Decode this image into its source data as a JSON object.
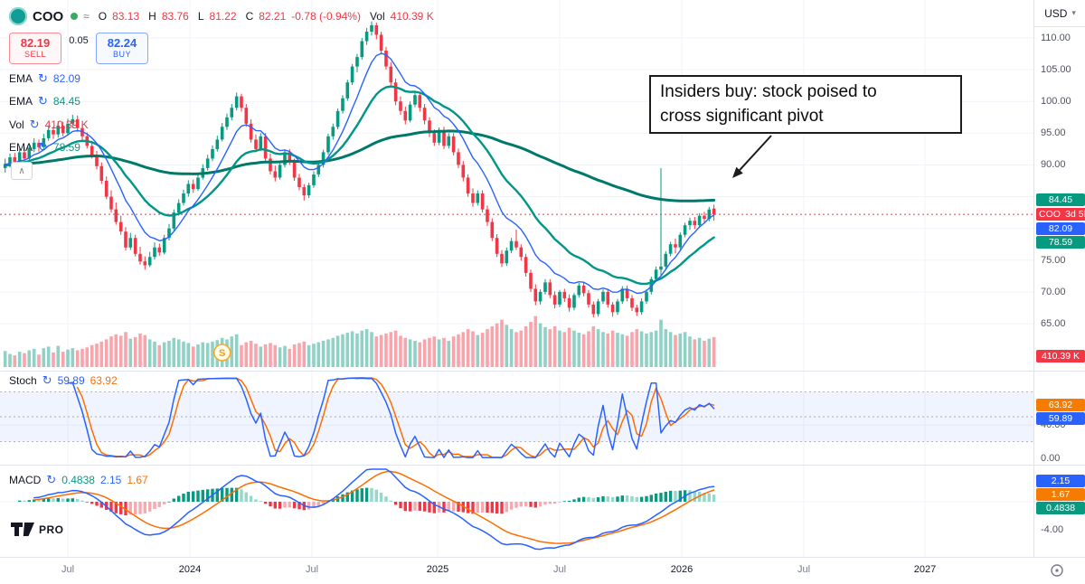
{
  "icons": {
    "approx": "≈",
    "refresh": "↻",
    "collapse": "∧",
    "currency_caret": "▾"
  },
  "header": {
    "symbol": "COO",
    "ohlc": {
      "o_label": "O",
      "o": "83.13",
      "h_label": "H",
      "h": "83.76",
      "l_label": "L",
      "l": "81.22",
      "c_label": "C",
      "c": "82.21",
      "change": "-0.78 (-0.94%)",
      "vol_label": "Vol",
      "vol": "410.39 K"
    },
    "currency_button": {
      "label": "USD"
    }
  },
  "trade_panel": {
    "sell_price": "82.19",
    "sell_label": "SELL",
    "sell_color": "#f23645",
    "spread": "0.05",
    "buy_price": "82.24",
    "buy_label": "BUY",
    "buy_color": "#2962ff"
  },
  "legend": {
    "rows": [
      {
        "label": "EMA",
        "value": "82.09",
        "color": "#2962ff"
      },
      {
        "label": "EMA",
        "value": "84.45",
        "color": "#089981"
      },
      {
        "label": "Vol",
        "value": "410.39 K",
        "color": "#f23645"
      },
      {
        "label": "EMA",
        "value": "78.59",
        "color": "#089981"
      }
    ]
  },
  "panes": {
    "stoch": {
      "label": "Stoch",
      "k": "59.89",
      "k_color": "#2962ff",
      "d": "63.92",
      "d_color": "#ff6d00"
    },
    "macd": {
      "label": "MACD",
      "hist": "0.4838",
      "hist_color": "#089981",
      "macd": "2.15",
      "macd_color": "#2962ff",
      "signal": "1.67",
      "signal_color": "#ff6d00"
    }
  },
  "price_axis": {
    "labels": [
      "110.00",
      "105.00",
      "100.00",
      "95.00",
      "90.00",
      "75.00",
      "70.00",
      "65.00"
    ],
    "badges": [
      {
        "text": "84.45",
        "color": "#089981"
      },
      {
        "text": "COO",
        "text2": "3d 5h",
        "color": "#f23645"
      },
      {
        "text": "82.09",
        "color": "#2962ff"
      },
      {
        "text": "78.59",
        "color": "#089981"
      },
      {
        "text": "410.39 K",
        "color": "#f23645"
      }
    ]
  },
  "stoch_axis": {
    "labels": [
      "40.00",
      "0.00"
    ],
    "badges": [
      {
        "text": "63.92",
        "color": "#f57c00"
      },
      {
        "text": "59.89",
        "color": "#2962ff"
      }
    ]
  },
  "macd_axis": {
    "labels": [
      "-4.00"
    ],
    "badges": [
      {
        "text": "2.15",
        "color": "#2962ff"
      },
      {
        "text": "1.67",
        "color": "#f57c00"
      },
      {
        "text": "0.4838",
        "color": "#089981"
      }
    ]
  },
  "time_axis": {
    "labels": [
      "Jul",
      "2024",
      "Jul",
      "2025",
      "Jul",
      "2026",
      "Jul",
      "2027"
    ]
  },
  "annotation": {
    "line1": "Insiders buy: stock poised to",
    "line2": "cross significant pivot"
  },
  "marker": {
    "label": "S"
  },
  "logo": {
    "text": "PRO"
  },
  "chart_data": {
    "type": "candlestick",
    "symbol": "COO",
    "currency": "USD",
    "bar_interval": "1W",
    "last_bar_countdown": "3d 5h",
    "ohlc_last": {
      "open": 83.13,
      "high": 83.76,
      "low": 81.22,
      "close": 82.21,
      "change": -0.78,
      "change_pct": -0.94,
      "volume_k": 410.39
    },
    "price_line": 82.21,
    "ylim": [
      58,
      116
    ],
    "x_axis_labels": [
      "Jul",
      "2024",
      "Jul",
      "2025",
      "Jul",
      "2026",
      "Jul",
      "2027"
    ],
    "style": {
      "up": "#089981",
      "down": "#f23645",
      "vol_up": "rgba(8,153,129,0.45)",
      "vol_down": "rgba(242,54,69,0.45)",
      "grid": "#f0f3fa",
      "separator": "#e0e3eb"
    },
    "emas": [
      {
        "period": 9,
        "color": "#2962ff",
        "width": 1.4,
        "last": 82.09
      },
      {
        "period": 21,
        "color": "#009688",
        "width": 2.4,
        "last": 78.59
      },
      {
        "period": 110,
        "color": "#00796b",
        "width": 3,
        "last": 84.45
      }
    ],
    "stochastic": {
      "k_period": 14,
      "d_period": 3,
      "k_last": 59.89,
      "d_last": 63.92,
      "band": [
        20,
        80
      ]
    },
    "macd": {
      "fast": 12,
      "slow": 26,
      "signal": 9,
      "macd_last": 2.15,
      "signal_last": 1.67,
      "hist_last": 0.4838
    },
    "candles": [
      [
        89.5,
        91.0,
        88.8,
        90.0,
        220
      ],
      [
        90.0,
        91.8,
        89.6,
        91.2,
        180
      ],
      [
        91.2,
        91.9,
        89.9,
        90.5,
        160
      ],
      [
        90.5,
        92.6,
        90.1,
        92.0,
        210
      ],
      [
        92.0,
        92.8,
        90.4,
        91.0,
        190
      ],
      [
        91.0,
        93.1,
        90.7,
        92.5,
        230
      ],
      [
        92.5,
        94.2,
        92.0,
        93.5,
        250
      ],
      [
        93.5,
        94.0,
        92.1,
        92.8,
        170
      ],
      [
        92.8,
        94.9,
        92.4,
        94.2,
        260
      ],
      [
        94.2,
        96.2,
        93.8,
        95.5,
        280
      ],
      [
        95.5,
        96.0,
        94.1,
        94.8,
        200
      ],
      [
        94.8,
        96.9,
        94.3,
        96.2,
        290
      ],
      [
        96.2,
        96.8,
        94.5,
        95.0,
        210
      ],
      [
        95.0,
        97.3,
        94.6,
        96.5,
        240
      ],
      [
        96.5,
        97.9,
        95.8,
        97.2,
        260
      ],
      [
        97.2,
        97.8,
        95.2,
        95.8,
        230
      ],
      [
        95.8,
        96.4,
        93.9,
        94.5,
        250
      ],
      [
        94.5,
        95.1,
        92.6,
        93.0,
        270
      ],
      [
        93.0,
        93.8,
        91.0,
        91.5,
        300
      ],
      [
        91.5,
        92.2,
        89.3,
        89.8,
        320
      ],
      [
        89.8,
        90.4,
        87.0,
        87.5,
        350
      ],
      [
        87.5,
        88.2,
        84.6,
        85.0,
        380
      ],
      [
        85.0,
        86.0,
        82.5,
        83.0,
        420
      ],
      [
        83.0,
        84.1,
        80.6,
        81.0,
        450
      ],
      [
        81.0,
        82.0,
        79.0,
        79.5,
        430
      ],
      [
        79.5,
        80.2,
        76.5,
        77.0,
        480
      ],
      [
        77.0,
        79.3,
        76.6,
        78.5,
        390
      ],
      [
        78.5,
        79.0,
        75.6,
        76.0,
        410
      ],
      [
        76.0,
        77.1,
        74.3,
        74.8,
        460
      ],
      [
        74.8,
        75.6,
        73.5,
        74.2,
        440
      ],
      [
        74.2,
        76.3,
        73.9,
        75.5,
        380
      ],
      [
        75.5,
        77.8,
        75.1,
        77.0,
        350
      ],
      [
        77.0,
        77.6,
        75.7,
        76.2,
        300
      ],
      [
        76.2,
        79.0,
        75.9,
        78.5,
        340
      ],
      [
        78.5,
        80.7,
        78.1,
        80.0,
        360
      ],
      [
        80.0,
        83.0,
        79.6,
        82.5,
        400
      ],
      [
        82.5,
        84.6,
        82.0,
        84.0,
        380
      ],
      [
        84.0,
        86.1,
        83.6,
        85.5,
        350
      ],
      [
        85.5,
        87.6,
        85.0,
        87.0,
        330
      ],
      [
        87.0,
        87.7,
        85.6,
        86.2,
        280
      ],
      [
        86.2,
        88.6,
        85.9,
        88.0,
        310
      ],
      [
        88.0,
        90.1,
        87.7,
        89.5,
        340
      ],
      [
        89.5,
        91.6,
        89.1,
        91.0,
        330
      ],
      [
        91.0,
        93.1,
        90.6,
        92.5,
        350
      ],
      [
        92.5,
        94.6,
        92.1,
        94.0,
        370
      ],
      [
        94.0,
        96.6,
        93.7,
        96.0,
        400
      ],
      [
        96.0,
        98.1,
        95.5,
        97.5,
        380
      ],
      [
        97.5,
        99.6,
        97.0,
        99.0,
        420
      ],
      [
        99.0,
        101.4,
        98.6,
        100.8,
        450
      ],
      [
        100.8,
        101.2,
        98.4,
        99.0,
        300
      ],
      [
        99.0,
        99.6,
        96.0,
        96.5,
        340
      ],
      [
        96.5,
        97.2,
        93.5,
        94.0,
        360
      ],
      [
        94.0,
        94.8,
        92.0,
        92.5,
        320
      ],
      [
        92.5,
        95.0,
        92.2,
        94.5,
        280
      ],
      [
        94.5,
        95.0,
        90.6,
        91.0,
        310
      ],
      [
        91.0,
        91.8,
        88.5,
        89.0,
        330
      ],
      [
        89.0,
        89.9,
        87.4,
        88.0,
        300
      ],
      [
        88.0,
        90.4,
        87.7,
        90.0,
        270
      ],
      [
        90.0,
        92.4,
        89.6,
        92.0,
        290
      ],
      [
        92.0,
        92.5,
        90.0,
        90.5,
        250
      ],
      [
        90.5,
        91.0,
        87.5,
        88.0,
        310
      ],
      [
        88.0,
        88.6,
        86.0,
        86.5,
        330
      ],
      [
        86.5,
        87.0,
        84.4,
        85.2,
        350
      ],
      [
        85.2,
        87.2,
        84.8,
        86.8,
        300
      ],
      [
        86.8,
        89.0,
        86.4,
        88.5,
        320
      ],
      [
        88.5,
        90.4,
        88.1,
        90.0,
        340
      ],
      [
        90.0,
        92.4,
        89.6,
        92.0,
        360
      ],
      [
        92.0,
        94.9,
        91.6,
        94.5,
        380
      ],
      [
        94.5,
        96.5,
        94.0,
        96.0,
        400
      ],
      [
        96.0,
        98.9,
        95.6,
        98.5,
        430
      ],
      [
        98.5,
        101.0,
        98.1,
        100.5,
        450
      ],
      [
        100.5,
        103.4,
        100.1,
        103.0,
        470
      ],
      [
        103.0,
        105.9,
        102.6,
        105.5,
        490
      ],
      [
        105.5,
        107.5,
        104.6,
        107.0,
        460
      ],
      [
        107.0,
        110.0,
        106.6,
        109.5,
        500
      ],
      [
        109.5,
        111.6,
        108.9,
        111.0,
        520
      ],
      [
        111.0,
        112.6,
        110.4,
        112.0,
        480
      ],
      [
        112.0,
        112.4,
        109.8,
        110.5,
        420
      ],
      [
        110.5,
        111.0,
        107.4,
        108.0,
        440
      ],
      [
        108.0,
        108.6,
        105.0,
        105.5,
        460
      ],
      [
        105.5,
        106.2,
        102.5,
        103.0,
        480
      ],
      [
        103.0,
        103.6,
        99.4,
        100.0,
        500
      ],
      [
        100.0,
        100.8,
        97.9,
        98.5,
        430
      ],
      [
        98.5,
        99.2,
        96.4,
        97.0,
        400
      ],
      [
        97.0,
        100.0,
        96.7,
        99.5,
        380
      ],
      [
        99.5,
        101.6,
        99.1,
        101.0,
        360
      ],
      [
        101.0,
        101.5,
        98.4,
        99.0,
        340
      ],
      [
        99.0,
        99.6,
        96.4,
        97.0,
        380
      ],
      [
        97.0,
        97.5,
        94.4,
        95.0,
        400
      ],
      [
        95.0,
        95.6,
        93.0,
        93.5,
        420
      ],
      [
        93.5,
        95.9,
        93.1,
        95.5,
        380
      ],
      [
        95.5,
        96.0,
        92.5,
        93.0,
        400
      ],
      [
        93.0,
        95.0,
        92.6,
        94.5,
        360
      ],
      [
        94.5,
        95.0,
        91.5,
        92.0,
        420
      ],
      [
        92.0,
        92.6,
        89.5,
        90.0,
        450
      ],
      [
        90.0,
        90.6,
        87.4,
        88.0,
        480
      ],
      [
        88.0,
        88.5,
        85.0,
        85.5,
        520
      ],
      [
        85.5,
        86.3,
        83.4,
        84.0,
        490
      ],
      [
        84.0,
        86.0,
        83.6,
        85.5,
        440
      ],
      [
        85.5,
        86.0,
        82.5,
        83.0,
        470
      ],
      [
        83.0,
        83.6,
        80.4,
        81.0,
        520
      ],
      [
        81.0,
        81.6,
        78.0,
        78.5,
        560
      ],
      [
        78.5,
        79.1,
        75.5,
        76.0,
        600
      ],
      [
        76.0,
        76.6,
        73.9,
        74.5,
        650
      ],
      [
        74.5,
        77.0,
        74.1,
        76.5,
        580
      ],
      [
        76.5,
        78.5,
        76.1,
        78.0,
        520
      ],
      [
        78.0,
        79.8,
        76.6,
        77.0,
        480
      ],
      [
        77.0,
        77.5,
        74.9,
        75.5,
        500
      ],
      [
        75.5,
        76.0,
        72.4,
        73.0,
        560
      ],
      [
        73.0,
        73.5,
        70.0,
        70.5,
        620
      ],
      [
        70.5,
        71.2,
        67.9,
        68.5,
        700
      ],
      [
        68.5,
        70.4,
        68.0,
        70.0,
        600
      ],
      [
        70.0,
        72.0,
        69.6,
        71.5,
        550
      ],
      [
        71.5,
        72.0,
        69.0,
        69.5,
        520
      ],
      [
        69.5,
        70.1,
        67.4,
        68.0,
        560
      ],
      [
        68.0,
        70.3,
        67.6,
        70.0,
        500
      ],
      [
        70.0,
        70.5,
        68.4,
        69.0,
        480
      ],
      [
        69.0,
        69.6,
        66.9,
        67.5,
        540
      ],
      [
        67.5,
        69.8,
        67.1,
        69.5,
        500
      ],
      [
        69.5,
        71.4,
        69.1,
        71.0,
        470
      ],
      [
        71.0,
        71.6,
        69.3,
        69.8,
        450
      ],
      [
        69.8,
        70.3,
        67.5,
        68.0,
        490
      ],
      [
        68.0,
        68.5,
        66.0,
        66.5,
        560
      ],
      [
        66.5,
        68.9,
        66.1,
        68.5,
        520
      ],
      [
        68.5,
        70.4,
        68.1,
        70.0,
        480
      ],
      [
        70.0,
        70.5,
        67.5,
        68.0,
        460
      ],
      [
        68.0,
        68.4,
        66.1,
        66.8,
        500
      ],
      [
        66.8,
        68.9,
        66.4,
        68.5,
        470
      ],
      [
        68.5,
        70.9,
        68.1,
        70.5,
        450
      ],
      [
        70.5,
        71.0,
        68.5,
        69.0,
        430
      ],
      [
        69.0,
        69.5,
        67.0,
        67.5,
        480
      ],
      [
        67.5,
        68.0,
        66.2,
        66.8,
        520
      ],
      [
        66.8,
        69.0,
        66.4,
        68.5,
        490
      ],
      [
        68.5,
        70.4,
        68.1,
        70.0,
        460
      ],
      [
        70.0,
        72.4,
        69.6,
        72.0,
        480
      ],
      [
        72.0,
        74.0,
        71.6,
        73.5,
        500
      ],
      [
        73.5,
        89.5,
        72.5,
        74.0,
        650
      ],
      [
        74.0,
        76.4,
        73.6,
        76.0,
        520
      ],
      [
        76.0,
        77.9,
        75.6,
        77.5,
        480
      ],
      [
        77.5,
        78.4,
        76.1,
        77.0,
        440
      ],
      [
        77.0,
        79.4,
        76.6,
        79.0,
        460
      ],
      [
        79.0,
        80.9,
        78.6,
        80.5,
        480
      ],
      [
        80.5,
        81.7,
        79.8,
        81.2,
        420
      ],
      [
        81.2,
        81.8,
        79.9,
        80.5,
        380
      ],
      [
        80.5,
        82.4,
        80.1,
        82.0,
        400
      ],
      [
        82.0,
        82.6,
        80.9,
        81.5,
        360
      ],
      [
        81.5,
        83.4,
        81.1,
        82.99,
        390
      ],
      [
        83.13,
        83.76,
        81.22,
        82.21,
        410.39
      ]
    ]
  }
}
